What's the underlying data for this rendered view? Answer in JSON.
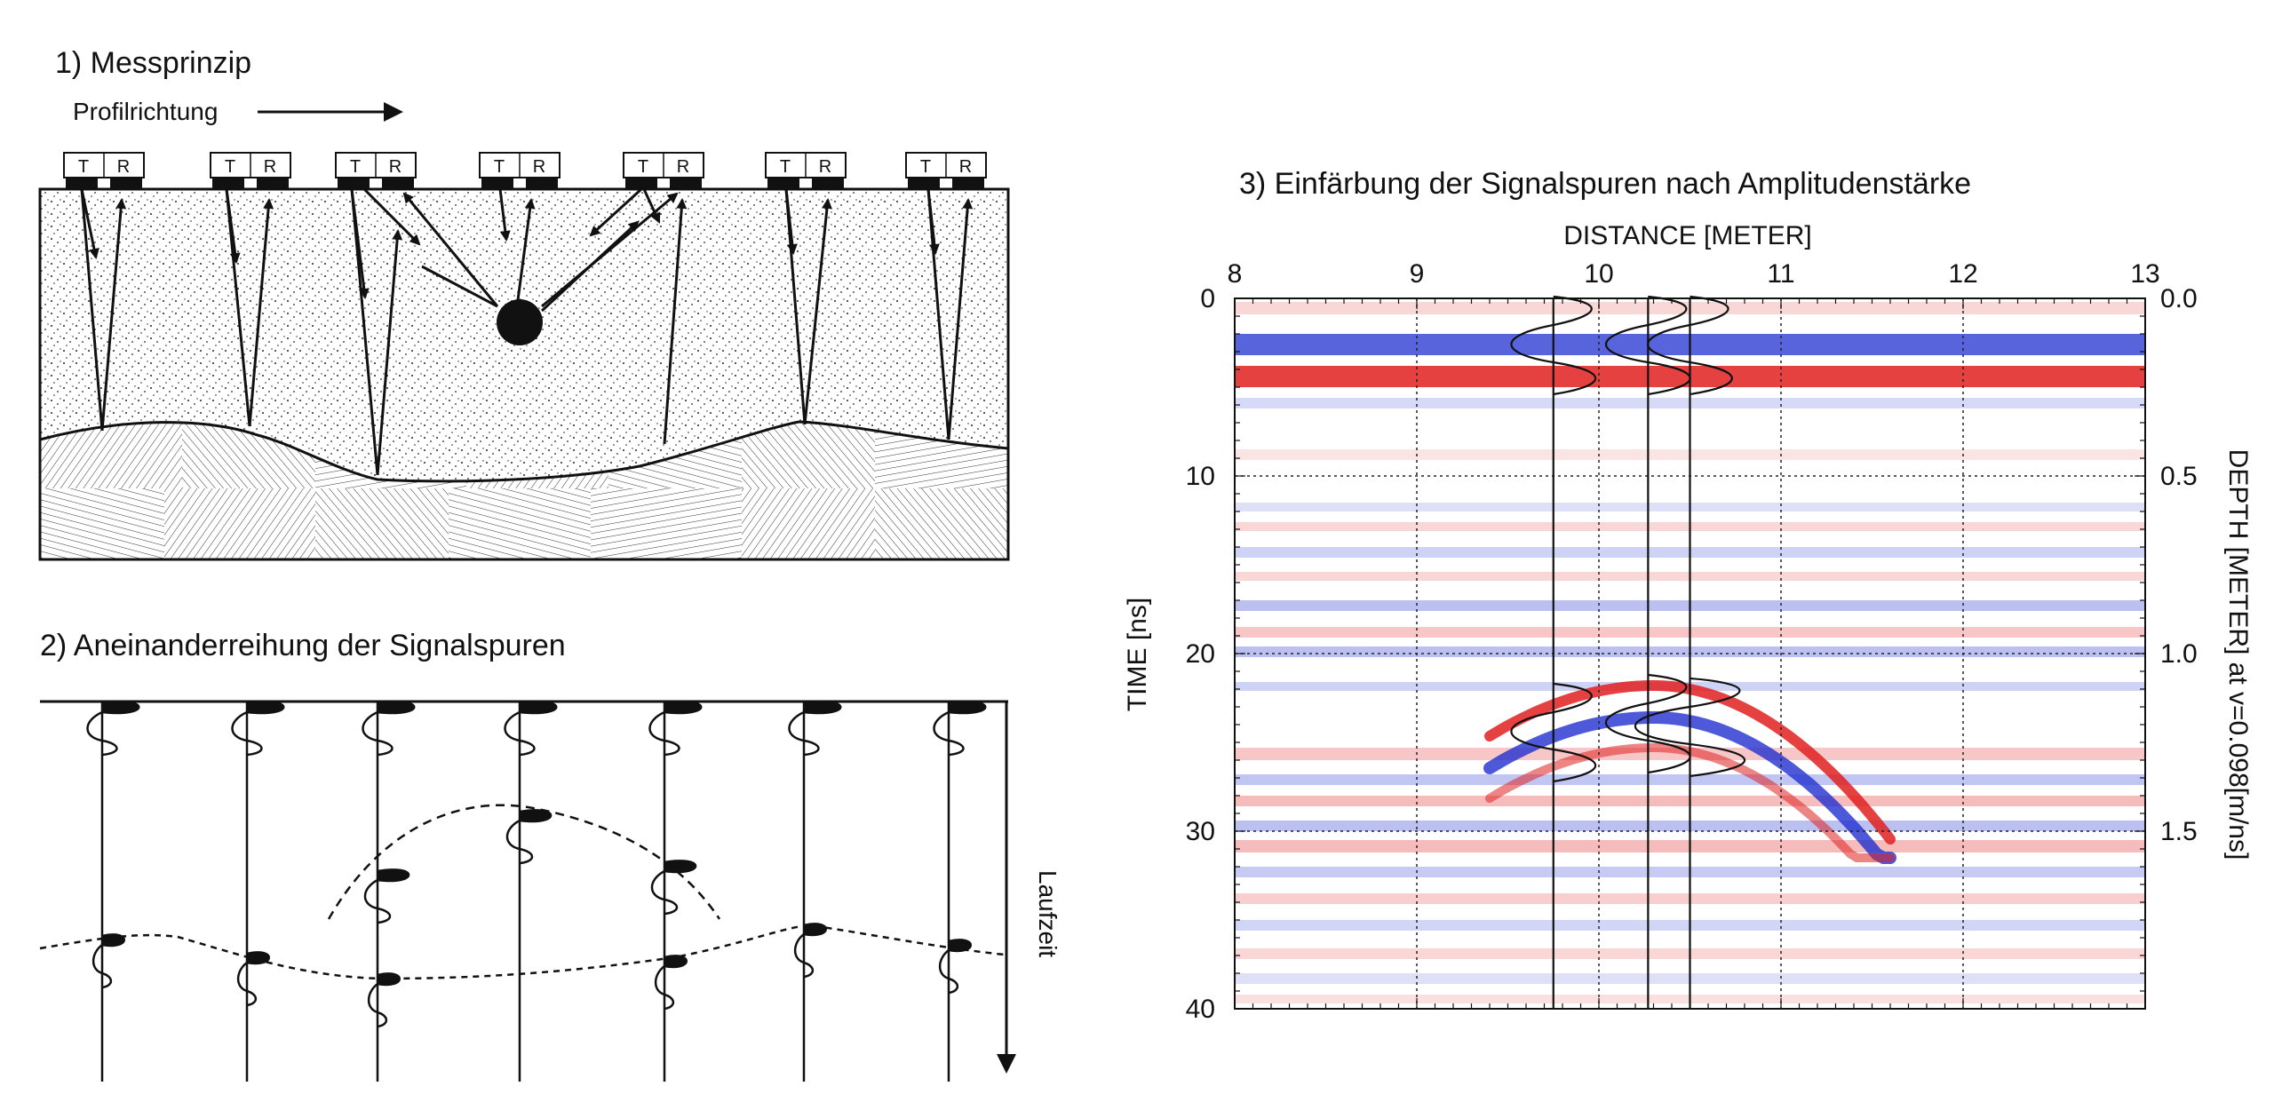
{
  "panel1": {
    "title": "1) Messprinzip",
    "direction_label": "Profilrichtung",
    "antenna_labels": [
      "T",
      "R"
    ],
    "antenna_count": 7
  },
  "panel2": {
    "title": "2) Aneinanderreihung der Signalspuren",
    "time_label": "Laufzeit",
    "trace_count": 7
  },
  "panel3": {
    "title": "3) Einfärbung der Signalspuren nach Amplitudenstärke",
    "x_axis_label": "DISTANCE [METER]",
    "y_axis_label": "TIME [ns]",
    "y2_axis_label": "DEPTH [METER] at v=0.098[m/ns]",
    "x_ticks": [
      "8",
      "9",
      "10",
      "11",
      "12",
      "13"
    ],
    "y_ticks": [
      "0",
      "10",
      "20",
      "30",
      "40"
    ],
    "y2_ticks": [
      "0.0",
      "0.5",
      "1.0",
      "1.5"
    ],
    "colors": {
      "positive": "#e02020",
      "negative": "#2030d0"
    }
  },
  "chart_data": {
    "type": "heatmap",
    "title": "3) Einfärbung der Signalspuren nach Amplitudenstärke",
    "xlabel": "DISTANCE [METER]",
    "ylabel": "TIME [ns]",
    "y2label": "DEPTH [METER] at v=0.098[m/ns]",
    "xlim": [
      8,
      13
    ],
    "ylim": [
      0,
      40
    ],
    "y2lim": [
      0.0,
      2.0
    ],
    "grid": true,
    "highlighted_traces_m": [
      9.75,
      10.27,
      10.5
    ],
    "reflection_hyperbola_apex": {
      "distance_m": 10.3,
      "time_ns": 23
    }
  }
}
